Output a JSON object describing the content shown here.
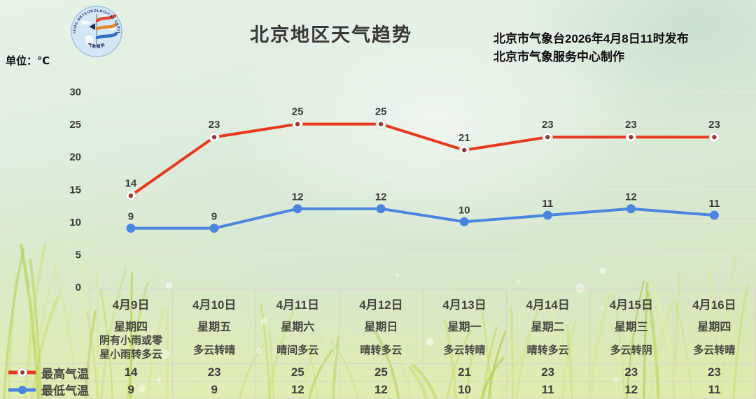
{
  "header": {
    "title": "北京地区天气趋势",
    "issued_line1": "北京市气象台2026年4月8日11时发布",
    "issued_line2": "北京市气象服务中心制作",
    "unit_label": "单位：℃"
  },
  "logo": {
    "ring_text_top": "BEIJING METEOROLOGICAL SERVICE",
    "ring_text_bottom": "气象服务"
  },
  "chart_data": {
    "type": "line",
    "title": "北京地区天气趋势",
    "ylabel": "单位：℃",
    "xlabel": "",
    "ylim": [
      0,
      30
    ],
    "yticks": [
      0,
      5,
      10,
      15,
      20,
      25,
      30
    ],
    "grid": true,
    "legend_position": "bottom-left-table",
    "categories": [
      "4月9日",
      "4月10日",
      "4月11日",
      "4月12日",
      "4月13日",
      "4月14日",
      "4月15日",
      "4月16日"
    ],
    "weekdays": [
      "星期四",
      "星期五",
      "星期六",
      "星期日",
      "星期一",
      "星期二",
      "星期三",
      "星期四"
    ],
    "weather": [
      "阴有小雨或零星小雨转多云",
      "多云转晴",
      "晴间多云",
      "晴转多云",
      "多云转晴",
      "晴转多云",
      "多云转阴",
      "多云转晴"
    ],
    "series": [
      {
        "name": "最高气温",
        "values": [
          14,
          23,
          25,
          25,
          21,
          23,
          23,
          23
        ],
        "color": "#e8391d",
        "marker": "ring",
        "marker_center": "#993a31"
      },
      {
        "name": "最低气温",
        "values": [
          9,
          9,
          12,
          12,
          10,
          11,
          12,
          11
        ],
        "color": "#4a86e0",
        "marker": "dot"
      }
    ]
  },
  "colors": {
    "grid_line": "#f3e7e7",
    "table_border": "#ddd0cf",
    "tick_text": "#3c3c3c",
    "data_label_text": "#3d3d3d"
  }
}
